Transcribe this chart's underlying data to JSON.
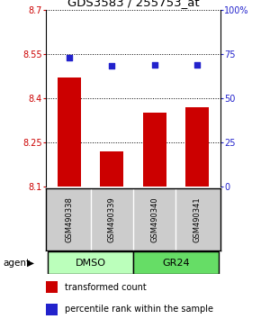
{
  "title": "GDS3583 / 255753_at",
  "samples": [
    "GSM490338",
    "GSM490339",
    "GSM490340",
    "GSM490341"
  ],
  "bar_values": [
    8.47,
    8.22,
    8.35,
    8.37
  ],
  "bar_baseline": 8.1,
  "percentile_values": [
    73,
    68,
    69,
    69
  ],
  "ylim_left": [
    8.1,
    8.7
  ],
  "ylim_right": [
    0,
    100
  ],
  "yticks_left": [
    8.1,
    8.25,
    8.4,
    8.55,
    8.7
  ],
  "yticks_right": [
    0,
    25,
    50,
    75,
    100
  ],
  "ytick_labels_right": [
    "0",
    "25",
    "50",
    "75",
    "100%"
  ],
  "bar_color": "#cc0000",
  "marker_color": "#2222cc",
  "groups": [
    {
      "label": "DMSO",
      "indices": [
        0,
        1
      ],
      "color": "#bbffbb"
    },
    {
      "label": "GR24",
      "indices": [
        2,
        3
      ],
      "color": "#66dd66"
    }
  ],
  "group_label": "agent",
  "sample_box_color": "#cccccc",
  "background_color": "#ffffff",
  "legend_items": [
    {
      "color": "#cc0000",
      "label": "transformed count"
    },
    {
      "color": "#2222cc",
      "label": "percentile rank within the sample"
    }
  ],
  "title_fontsize": 9.5,
  "tick_fontsize": 7,
  "sample_fontsize": 6,
  "group_fontsize": 8,
  "legend_fontsize": 7
}
